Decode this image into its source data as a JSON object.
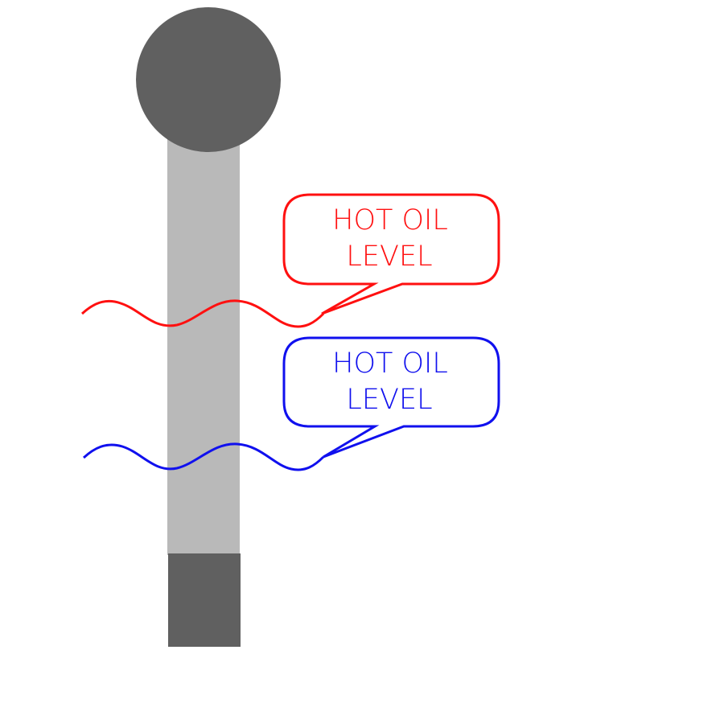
{
  "dipstick": {
    "handle_color": "#606060",
    "shaft_color": "#b9b9b9",
    "tip_color": "#606060"
  },
  "levels": [
    {
      "name": "upper",
      "color": "#ff1010",
      "label_line1": "HOT OIL",
      "label_line2": "LEVEL"
    },
    {
      "name": "lower",
      "color": "#1010ee",
      "label_line1": "HOT OIL",
      "label_line2": "LEVEL"
    }
  ]
}
